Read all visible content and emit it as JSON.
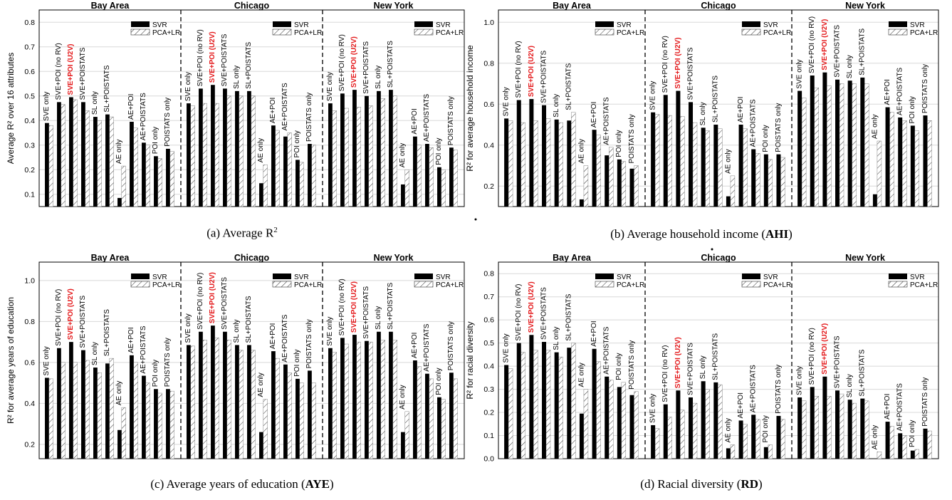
{
  "figure": {
    "captions": [
      {
        "prefix": "(a) Average R",
        "sup": "2",
        "bold": "",
        "suffix": ""
      },
      {
        "prefix": "(b) Average household income (",
        "sup": "",
        "bold": "AHI",
        "suffix": ")"
      },
      {
        "prefix": "(c) Average years of education (",
        "sup": "",
        "bold": "AYE",
        "suffix": ")"
      },
      {
        "prefix": "(d) Racial diversity (",
        "sup": "",
        "bold": "RD",
        "suffix": ")"
      }
    ]
  },
  "chart_data": [
    {
      "type": "bar",
      "ylabel": "Average R² over 16 attributes",
      "ylim": [
        0.05,
        0.85
      ],
      "yticks": [
        0.1,
        0.2,
        0.3,
        0.4,
        0.5,
        0.6,
        0.7,
        0.8
      ],
      "grid": true,
      "legend": {
        "position": "top-right of each region",
        "entries": [
          "SVR",
          "PCA+LR"
        ]
      },
      "highlight": {
        "label": "SVE+POI (U2V)",
        "color": "#e41a1c"
      },
      "regions": [
        {
          "name": "Bay Area",
          "categories": [
            "SVE only",
            "SVE+POI (no RV)",
            "SVE+POI (U2V)",
            "SVE+POISTATS",
            "SL only",
            "SL+POISTATS",
            "AE only",
            "AE+POI",
            "AE+POISTATS",
            "POI only",
            "POISTATS only"
          ],
          "svr": [
            0.39,
            0.475,
            0.495,
            0.475,
            0.415,
            0.425,
            0.085,
            0.395,
            0.31,
            0.255,
            0.285
          ],
          "pca_lr": [
            0.38,
            0.465,
            0.485,
            0.44,
            0.4,
            0.415,
            0.215,
            0.37,
            0.3,
            0.245,
            0.275
          ]
        },
        {
          "name": "Chicago",
          "categories": [
            "SVE only",
            "SVE+POI (no RV)",
            "SVE+POI (U2V)",
            "SVE+POISTATS",
            "SL only",
            "SL+POISTATS",
            "AE only",
            "AE+POI",
            "AE+POISTATS",
            "POI only",
            "POISTATS only"
          ],
          "svr": [
            0.47,
            0.53,
            0.545,
            0.53,
            0.52,
            0.52,
            0.145,
            0.38,
            0.335,
            0.24,
            0.305
          ],
          "pca_lr": [
            0.46,
            0.47,
            0.47,
            0.5,
            0.5,
            0.5,
            0.22,
            0.36,
            0.35,
            0.23,
            0.3
          ]
        },
        {
          "name": "New York",
          "categories": [
            "SVE only",
            "SVE+POI (no RV)",
            "SVE+POI (U2V)",
            "SVE+POISTATS",
            "SL only",
            "SL+POISTATS",
            "AE only",
            "AE+POI",
            "AE+POISTATS",
            "POI only",
            "POISTATS only"
          ],
          "svr": [
            0.47,
            0.51,
            0.525,
            0.5,
            0.52,
            0.525,
            0.14,
            0.335,
            0.305,
            0.21,
            0.29
          ],
          "pca_lr": [
            0.44,
            0.45,
            0.455,
            0.46,
            0.49,
            0.5,
            0.2,
            0.3,
            0.29,
            0.2,
            0.28
          ]
        }
      ]
    },
    {
      "type": "bar",
      "ylabel": "R² for average household income",
      "ylim": [
        0.1,
        1.06
      ],
      "yticks": [
        0.2,
        0.4,
        0.6,
        0.8,
        1.0
      ],
      "grid": true,
      "legend": {
        "position": "top-right of each region",
        "entries": [
          "SVR",
          "PCA+LR"
        ]
      },
      "highlight": {
        "label": "SVE+POI (U2V)",
        "color": "#e41a1c"
      },
      "regions": [
        {
          "name": "Bay Area",
          "categories": [
            "SVE only",
            "SVE+POI (no RV)",
            "SVE+POI (U2V)",
            "SVE+POISTATS",
            "SL only",
            "SL+POISTATS",
            "AE only",
            "AE+POI",
            "AE+POISTATS",
            "POI only",
            "POISTATS only"
          ],
          "svr": [
            0.53,
            0.62,
            0.625,
            0.595,
            0.525,
            0.52,
            0.135,
            0.475,
            0.35,
            0.33,
            0.285
          ],
          "pca_lr": [
            0.52,
            0.51,
            0.52,
            0.53,
            0.51,
            0.56,
            0.3,
            0.45,
            0.39,
            0.32,
            0.3
          ]
        },
        {
          "name": "Chicago",
          "categories": [
            "SVE only",
            "SVE+POI (no RV)",
            "SVE+POI (U2V)",
            "SVE+POISTATS",
            "SL only",
            "SL+POISTATS",
            "AE only",
            "AE+POI",
            "AE+POISTATS",
            "POI only",
            "POISTATS only"
          ],
          "svr": [
            0.56,
            0.645,
            0.665,
            0.61,
            0.485,
            0.5,
            0.15,
            0.5,
            0.38,
            0.355,
            0.355
          ],
          "pca_lr": [
            0.55,
            0.545,
            0.54,
            0.51,
            0.47,
            0.48,
            0.25,
            0.48,
            0.36,
            0.33,
            0.34
          ]
        },
        {
          "name": "New York",
          "categories": [
            "SVE only",
            "SVE+POI (no RV)",
            "SVE+POI (U2V)",
            "SVE+POISTATS",
            "SL only",
            "SL+POISTATS",
            "AE only",
            "AE+POI",
            "AE+POISTATS",
            "POI only",
            "POISTATS only"
          ],
          "svr": [
            0.665,
            0.74,
            0.755,
            0.72,
            0.715,
            0.73,
            0.16,
            0.585,
            0.535,
            0.495,
            0.545
          ],
          "pca_lr": [
            0.63,
            0.68,
            0.69,
            0.7,
            0.7,
            0.7,
            0.42,
            0.56,
            0.52,
            0.47,
            0.52
          ]
        }
      ]
    },
    {
      "type": "bar",
      "ylabel": "R² for average years of education",
      "ylim": [
        0.13,
        1.09
      ],
      "yticks": [
        0.2,
        0.4,
        0.6,
        0.8,
        1.0
      ],
      "grid": true,
      "legend": {
        "position": "top-right of each region",
        "entries": [
          "SVR",
          "PCA+LR"
        ]
      },
      "highlight": {
        "label": "SVE+POI (U2V)",
        "color": "#e41a1c"
      },
      "regions": [
        {
          "name": "Bay Area",
          "categories": [
            "SVE only",
            "SVE+POI (no RV)",
            "SVE+POI (U2V)",
            "SVE+POISTATS",
            "SL only",
            "SL+POISTATS",
            "AE only",
            "AE+POI",
            "AE+POISTATS",
            "POI only",
            "POISTATS only"
          ],
          "svr": [
            0.525,
            0.67,
            0.7,
            0.66,
            0.575,
            0.595,
            0.27,
            0.635,
            0.535,
            0.47,
            0.47
          ],
          "pca_lr": [
            0.52,
            0.6,
            0.6,
            0.61,
            0.55,
            0.62,
            0.38,
            0.6,
            0.5,
            0.45,
            0.46
          ]
        },
        {
          "name": "Chicago",
          "categories": [
            "SVE only",
            "SVE+POI (no RV)",
            "SVE+POI (U2V)",
            "SVE+POISTATS",
            "SL only",
            "SL+POISTATS",
            "AE only",
            "AE+POI",
            "AE+POISTATS",
            "POI only",
            "POISTATS only"
          ],
          "svr": [
            0.685,
            0.75,
            0.78,
            0.75,
            0.685,
            0.685,
            0.26,
            0.655,
            0.59,
            0.52,
            0.56
          ],
          "pca_lr": [
            0.68,
            0.71,
            0.72,
            0.71,
            0.66,
            0.66,
            0.42,
            0.62,
            0.55,
            0.5,
            0.5
          ]
        },
        {
          "name": "New York",
          "categories": [
            "SVE only",
            "SVE+POI (no RV)",
            "SVE+POI (U2V)",
            "SVE+POISTATS",
            "SL only",
            "SL+POISTATS",
            "AE only",
            "AE+POI",
            "AE+POISTATS",
            "POI only",
            "POISTATS only"
          ],
          "svr": [
            0.67,
            0.72,
            0.735,
            0.705,
            0.75,
            0.75,
            0.26,
            0.61,
            0.545,
            0.43,
            0.55
          ],
          "pca_lr": [
            0.65,
            0.69,
            0.7,
            0.7,
            0.71,
            0.71,
            0.36,
            0.58,
            0.52,
            0.42,
            0.52
          ]
        }
      ]
    },
    {
      "type": "bar",
      "ylabel": "R² for racial diversity",
      "ylim": [
        0.0,
        0.85
      ],
      "yticks": [
        0.0,
        0.1,
        0.2,
        0.3,
        0.4,
        0.5,
        0.6,
        0.7,
        0.8
      ],
      "grid": true,
      "legend": {
        "position": "top-right of each region",
        "entries": [
          "SVR",
          "PCA+LR"
        ]
      },
      "highlight": {
        "label": "SVE+POI (U2V)",
        "color": "#e41a1c"
      },
      "regions": [
        {
          "name": "Bay Area",
          "categories": [
            "SVE only",
            "SVE+POI (no RV)",
            "SVE+POI (U2V)",
            "SVE+POISTATS",
            "SL only",
            "SL+POISTATS",
            "AE only",
            "AE+POI",
            "AE+POISTATS",
            "POI only",
            "POISTATS only"
          ],
          "svr": [
            0.405,
            0.5,
            0.535,
            0.505,
            0.46,
            0.48,
            0.195,
            0.475,
            0.355,
            0.31,
            0.275
          ],
          "pca_lr": [
            0.39,
            0.46,
            0.47,
            0.47,
            0.44,
            0.5,
            0.3,
            0.42,
            0.34,
            0.33,
            0.29
          ]
        },
        {
          "name": "Chicago",
          "categories": [
            "SVE only",
            "SVE+POI (no RV)",
            "SVE+POI (U2V)",
            "SVE+POISTATS",
            "SL only",
            "SL+POISTATS",
            "AE only",
            "AE+POI",
            "AE+POISTATS",
            "POI only",
            "POISTATS only"
          ],
          "svr": [
            0.145,
            0.235,
            0.295,
            0.265,
            0.335,
            0.33,
            0.045,
            0.165,
            0.19,
            0.05,
            0.185
          ],
          "pca_lr": [
            0.13,
            0.18,
            0.21,
            0.24,
            0.3,
            0.32,
            0.06,
            0.15,
            0.17,
            0.06,
            0.17
          ]
        },
        {
          "name": "New York",
          "categories": [
            "SVE only",
            "SVE+POI (no RV)",
            "SVE+POI (U2V)",
            "SVE+POISTATS",
            "SL only",
            "SL+POISTATS",
            "AE only",
            "AE+POI",
            "AE+POISTATS",
            "POI only",
            "POISTATS only"
          ],
          "svr": [
            0.265,
            0.31,
            0.355,
            0.295,
            0.255,
            0.26,
            0.0,
            0.16,
            0.11,
            0.035,
            0.13
          ],
          "pca_lr": [
            0.25,
            0.27,
            0.27,
            0.28,
            0.24,
            0.25,
            0.03,
            0.14,
            0.1,
            0.04,
            0.12
          ]
        }
      ]
    }
  ]
}
